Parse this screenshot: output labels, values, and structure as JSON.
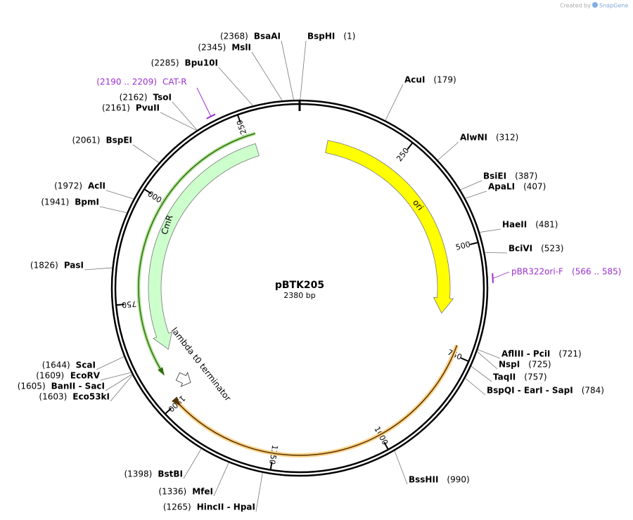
{
  "credit": "Created by",
  "brand": "SnapGene",
  "plasmid": {
    "name": "pBTK205",
    "length": {
      "value": 2380,
      "label": "2380 bp"
    }
  },
  "ring_ticks": [
    250,
    500,
    750,
    1000,
    1250,
    1500,
    1750,
    2000,
    2250
  ],
  "enzymes": [
    {
      "name": "BspHI",
      "site": {
        "value": 1,
        "label": "(1)"
      }
    },
    {
      "name": "AcuI",
      "site": {
        "value": 179,
        "label": "(179)"
      }
    },
    {
      "name": "AlwNI",
      "site": {
        "value": 312,
        "label": "(312)"
      }
    },
    {
      "name": "BsiEI",
      "site": {
        "value": 387,
        "label": "(387)"
      }
    },
    {
      "name": "ApaLI",
      "site": {
        "value": 407,
        "label": "(407)"
      }
    },
    {
      "name": "HaeII",
      "site": {
        "value": 481,
        "label": "(481)"
      }
    },
    {
      "name": "BciVI",
      "site": {
        "value": 523,
        "label": "(523)"
      }
    },
    {
      "name": "AflIII - PciI",
      "site": {
        "value": 721,
        "label": "(721)"
      }
    },
    {
      "name": "NspI",
      "site": {
        "value": 725,
        "label": "(725)"
      }
    },
    {
      "name": "TaqII",
      "site": {
        "value": 757,
        "label": "(757)"
      }
    },
    {
      "name": "BspQI - EarI - SapI",
      "site": {
        "value": 784,
        "label": "(784)"
      }
    },
    {
      "name": "BssHII",
      "site": {
        "value": 990,
        "label": "(990)"
      }
    },
    {
      "name": "HincII - HpaI",
      "site": {
        "value": 1265,
        "label": "(1265)"
      }
    },
    {
      "name": "MfeI",
      "site": {
        "value": 1336,
        "label": "(1336)"
      }
    },
    {
      "name": "BstBI",
      "site": {
        "value": 1398,
        "label": "(1398)"
      }
    },
    {
      "name": "Eco53kI",
      "site": {
        "value": 1603,
        "label": "(1603)"
      }
    },
    {
      "name": "BanII - SacI",
      "site": {
        "value": 1605,
        "label": "(1605)"
      }
    },
    {
      "name": "EcoRV",
      "site": {
        "value": 1609,
        "label": "(1609)"
      }
    },
    {
      "name": "ScaI",
      "site": {
        "value": 1644,
        "label": "(1644)"
      }
    },
    {
      "name": "PasI",
      "site": {
        "value": 1826,
        "label": "(1826)"
      }
    },
    {
      "name": "BpmI",
      "site": {
        "value": 1941,
        "label": "(1941)"
      }
    },
    {
      "name": "AclI",
      "site": {
        "value": 1972,
        "label": "(1972)"
      }
    },
    {
      "name": "BspEI",
      "site": {
        "value": 2061,
        "label": "(2061)"
      }
    },
    {
      "name": "PvuII",
      "site": {
        "value": 2161,
        "label": "(2161)"
      }
    },
    {
      "name": "TsoI",
      "site": {
        "value": 2162,
        "label": "(2162)"
      }
    },
    {
      "name": "Bpu10I",
      "site": {
        "value": 2285,
        "label": "(2285)"
      }
    },
    {
      "name": "MslI",
      "site": {
        "value": 2345,
        "label": "(2345)"
      }
    },
    {
      "name": "BsaAI",
      "site": {
        "value": 2368,
        "label": "(2368)"
      }
    }
  ],
  "primers": [
    {
      "name": "CAT-R",
      "start": 2190,
      "end": 2209,
      "label": "(2190 .. 2209)"
    },
    {
      "name": "pBR322ori-F",
      "start": 566,
      "end": 585,
      "label": "(566 .. 585)"
    }
  ],
  "features": [
    {
      "label": "ori"
    },
    {
      "label": "CmR"
    },
    {
      "label": "lambda t0 terminator"
    }
  ]
}
